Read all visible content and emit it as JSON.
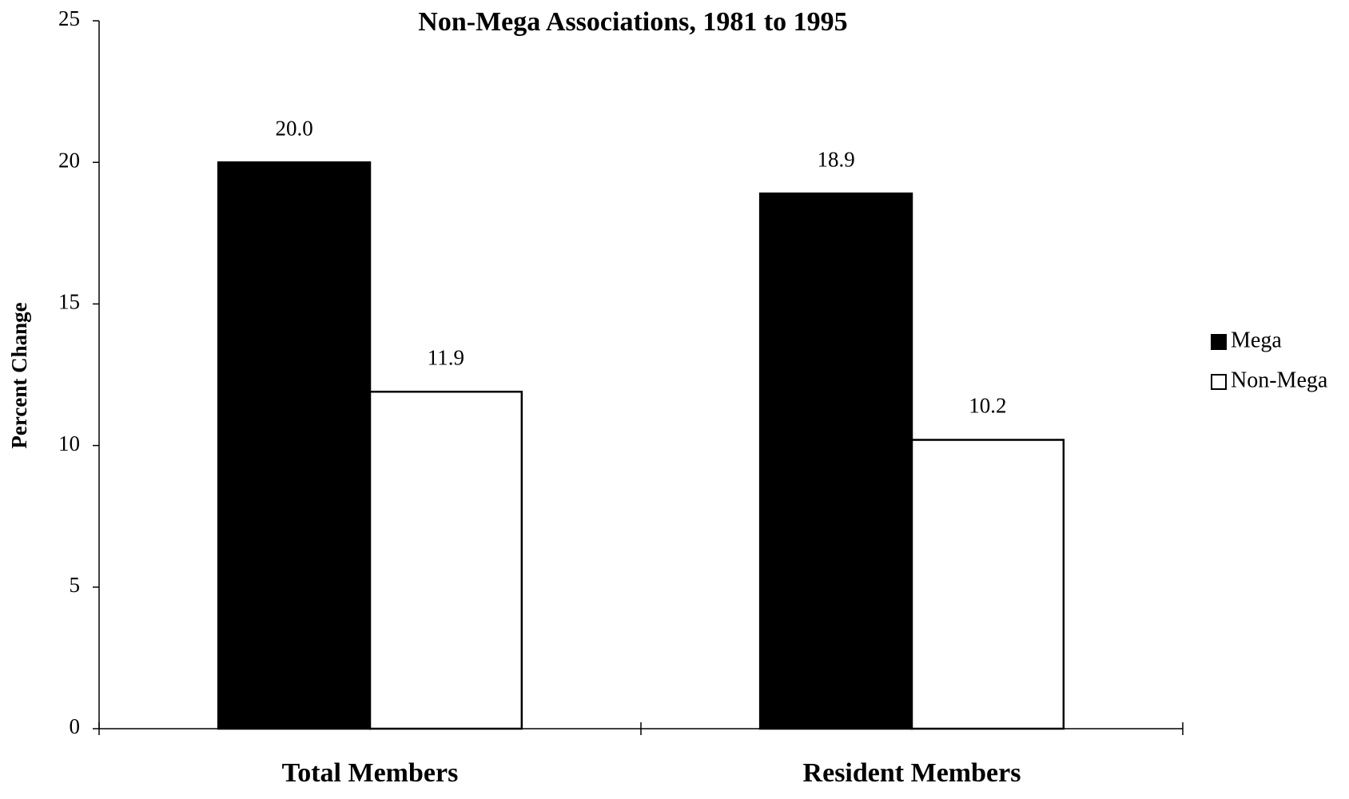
{
  "chart_data": {
    "type": "bar",
    "title": "Non-Mega Associations, 1981 to 1995",
    "y_label": "Percent Change",
    "categories": [
      "Total Members",
      "Resident Members"
    ],
    "series": [
      {
        "name": "Mega",
        "color": "#000000",
        "values": [
          20.0,
          18.9
        ],
        "value_labels": [
          "20.0",
          "18.9"
        ]
      },
      {
        "name": "Non-Mega",
        "color": "#ffffff",
        "values": [
          11.9,
          10.2
        ],
        "value_labels": [
          "11.9",
          "10.2"
        ]
      }
    ],
    "ylim": [
      0,
      25
    ],
    "yticks": [
      0,
      5,
      10,
      15,
      20,
      25
    ],
    "grid": false,
    "legend": "right"
  }
}
